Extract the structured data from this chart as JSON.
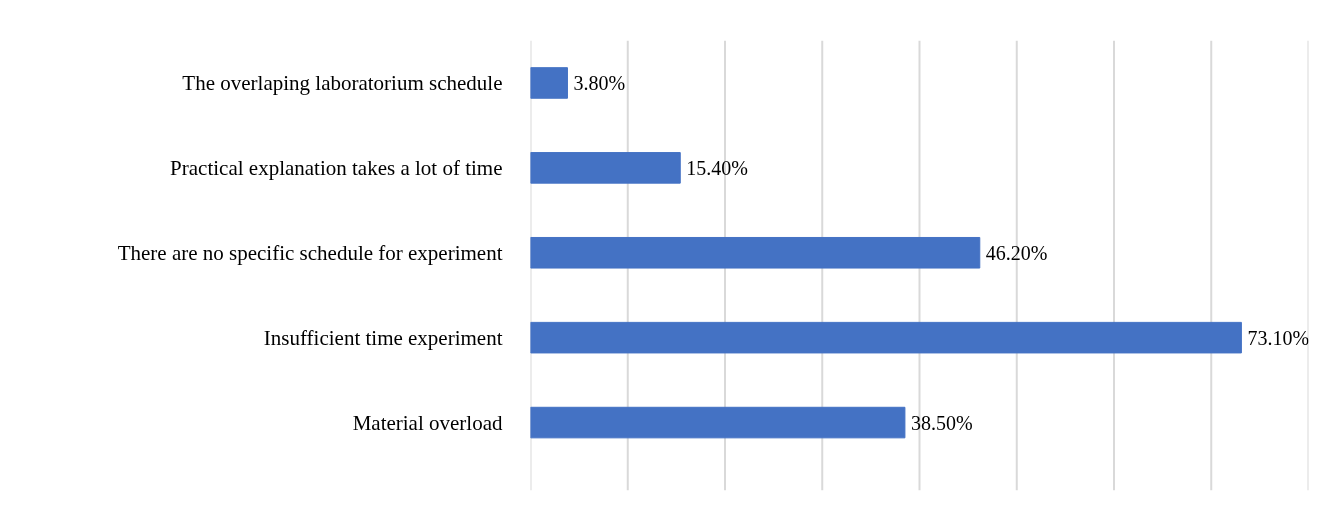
{
  "chart_data": {
    "type": "bar",
    "orientation": "horizontal",
    "categories": [
      "The overlaping laboratorium schedule",
      "Practical explanation takes a lot of time",
      "There are no specific schedule for experiment",
      "Insufficient time experiment",
      "Material overload"
    ],
    "values": [
      3.8,
      15.4,
      46.2,
      73.1,
      38.5
    ],
    "value_labels": [
      "3.80%",
      "15.40%",
      "46.20%",
      "73.10%",
      "38.50%"
    ],
    "color": "#4472c4",
    "xlim": [
      0,
      80
    ],
    "xticks": [
      {
        "value": 0,
        "label": null
      },
      {
        "value": 10,
        "label": null
      },
      {
        "value": 20,
        "label": null
      },
      {
        "value": 30,
        "label": null
      },
      {
        "value": 40,
        "label": null
      },
      {
        "value": 50,
        "label": null
      },
      {
        "value": 60,
        "label": null
      },
      {
        "value": 70,
        "label": null
      },
      {
        "value": 80,
        "label": null
      }
    ],
    "grid": "x",
    "tick_labels": "y"
  }
}
